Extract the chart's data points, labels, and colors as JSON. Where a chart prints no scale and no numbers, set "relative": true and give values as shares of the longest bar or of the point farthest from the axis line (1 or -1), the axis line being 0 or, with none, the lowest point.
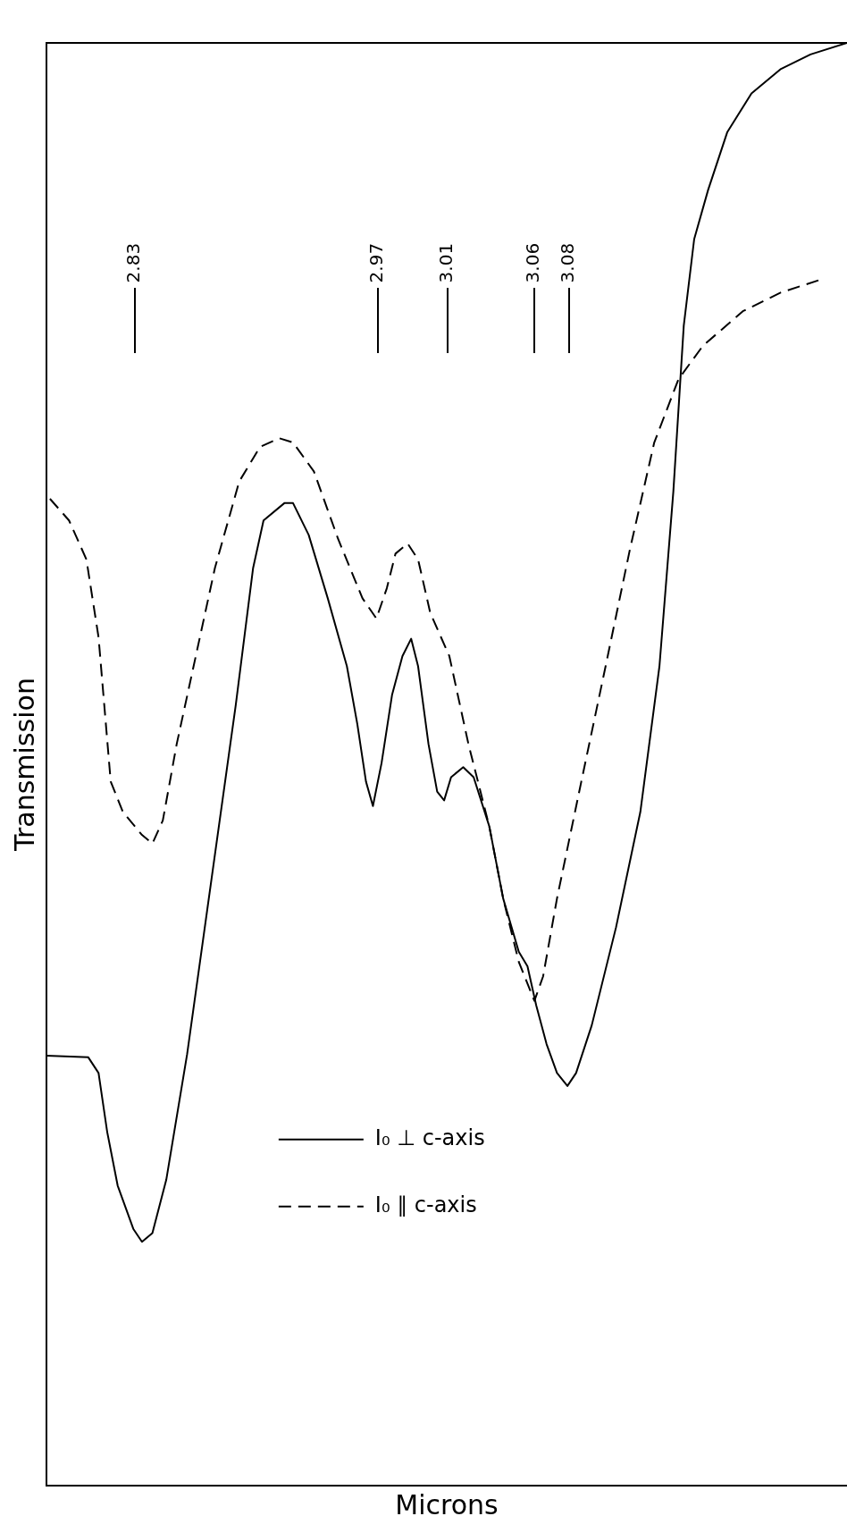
{
  "chart_data": {
    "type": "line",
    "relative": true,
    "xlabel": "Microns",
    "ylabel": "Transmission",
    "xlim": [
      2.779,
      3.24
    ],
    "xticks": [
      2.83,
      2.97,
      3.01,
      3.06,
      3.08
    ],
    "tick_labels": "x",
    "grid": false,
    "legend": "bottom",
    "marker": "none",
    "series": [
      {
        "name": "I₀ ⊥ c-axis",
        "color": "#000000",
        "line_style": "solid",
        "x": [
          2.779,
          2.803,
          2.809,
          2.814,
          2.82,
          2.829,
          2.834,
          2.84,
          2.848,
          2.86,
          2.874,
          2.888,
          2.898,
          2.904,
          2.916,
          2.921,
          2.93,
          2.941,
          2.952,
          2.958,
          2.963,
          2.967,
          2.972,
          2.978,
          2.984,
          2.989,
          2.993,
          2.999,
          3.004,
          3.008,
          3.012,
          3.019,
          3.025,
          3.034,
          3.042,
          3.051,
          3.056,
          3.061,
          3.067,
          3.073,
          3.079,
          3.084,
          3.093,
          3.107,
          3.121,
          3.132,
          3.14,
          3.146,
          3.152,
          3.16,
          3.171,
          3.185,
          3.202,
          3.219,
          3.24
        ],
        "values": [
          0.298,
          0.297,
          0.286,
          0.245,
          0.208,
          0.178,
          0.169,
          0.175,
          0.212,
          0.299,
          0.42,
          0.541,
          0.636,
          0.669,
          0.681,
          0.681,
          0.659,
          0.615,
          0.568,
          0.528,
          0.488,
          0.471,
          0.501,
          0.548,
          0.575,
          0.587,
          0.568,
          0.514,
          0.481,
          0.475,
          0.491,
          0.498,
          0.491,
          0.457,
          0.407,
          0.37,
          0.36,
          0.333,
          0.306,
          0.286,
          0.277,
          0.286,
          0.319,
          0.387,
          0.467,
          0.568,
          0.689,
          0.804,
          0.864,
          0.898,
          0.938,
          0.965,
          0.982,
          0.992,
          1
        ]
      },
      {
        "name": "I₀ ∥ c-axis",
        "color": "#000000",
        "line_style": "dashed",
        "x": [
          2.781,
          2.792,
          2.802,
          2.809,
          2.816,
          2.823,
          2.834,
          2.84,
          2.846,
          2.854,
          2.865,
          2.876,
          2.89,
          2.902,
          2.913,
          2.921,
          2.933,
          2.947,
          2.961,
          2.969,
          2.975,
          2.98,
          2.987,
          2.993,
          3.0,
          3.011,
          3.022,
          3.034,
          3.042,
          3.051,
          3.06,
          3.065,
          3.073,
          3.087,
          3.101,
          3.115,
          3.129,
          3.143,
          3.157,
          3.18,
          3.202,
          3.225
        ],
        "values": [
          0.684,
          0.669,
          0.642,
          0.588,
          0.488,
          0.467,
          0.451,
          0.445,
          0.461,
          0.514,
          0.575,
          0.636,
          0.696,
          0.72,
          0.726,
          0.723,
          0.703,
          0.656,
          0.615,
          0.601,
          0.622,
          0.646,
          0.653,
          0.642,
          0.605,
          0.575,
          0.514,
          0.457,
          0.407,
          0.363,
          0.336,
          0.353,
          0.407,
          0.488,
          0.568,
          0.649,
          0.723,
          0.767,
          0.79,
          0.814,
          0.827,
          0.836
        ]
      }
    ]
  }
}
